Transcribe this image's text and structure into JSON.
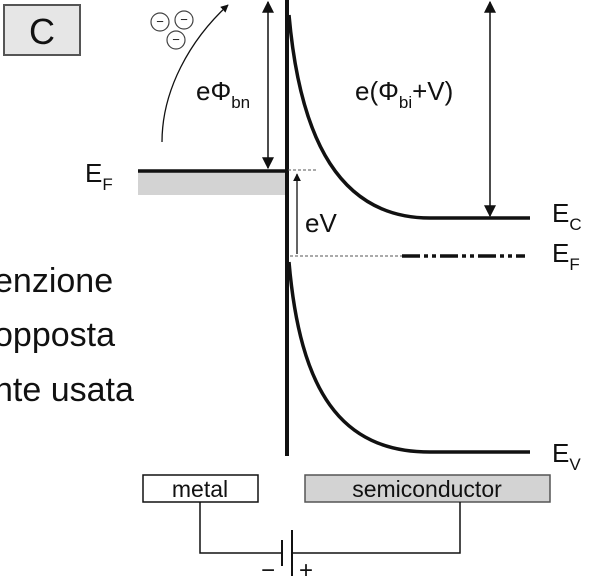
{
  "panel_label": "C",
  "electrons": [
    "−",
    "−",
    "−"
  ],
  "barrier": {
    "base": "eΦ",
    "sub": "bn"
  },
  "built_in": {
    "pre": "e(Φ",
    "sub": "bi",
    "post": "+V)"
  },
  "metal_fermi": {
    "base": "E",
    "sub": "F"
  },
  "bias": "eV",
  "conduction": {
    "base": "E",
    "sub": "C"
  },
  "semi_fermi": {
    "base": "E",
    "sub": "F"
  },
  "valence": {
    "base": "E",
    "sub": "V"
  },
  "side_text": [
    "enzione",
    "opposta",
    "nte usata"
  ],
  "metal": "metal",
  "semiconductor": "semiconductor",
  "battery": {
    "minus": "−",
    "plus": "+"
  }
}
